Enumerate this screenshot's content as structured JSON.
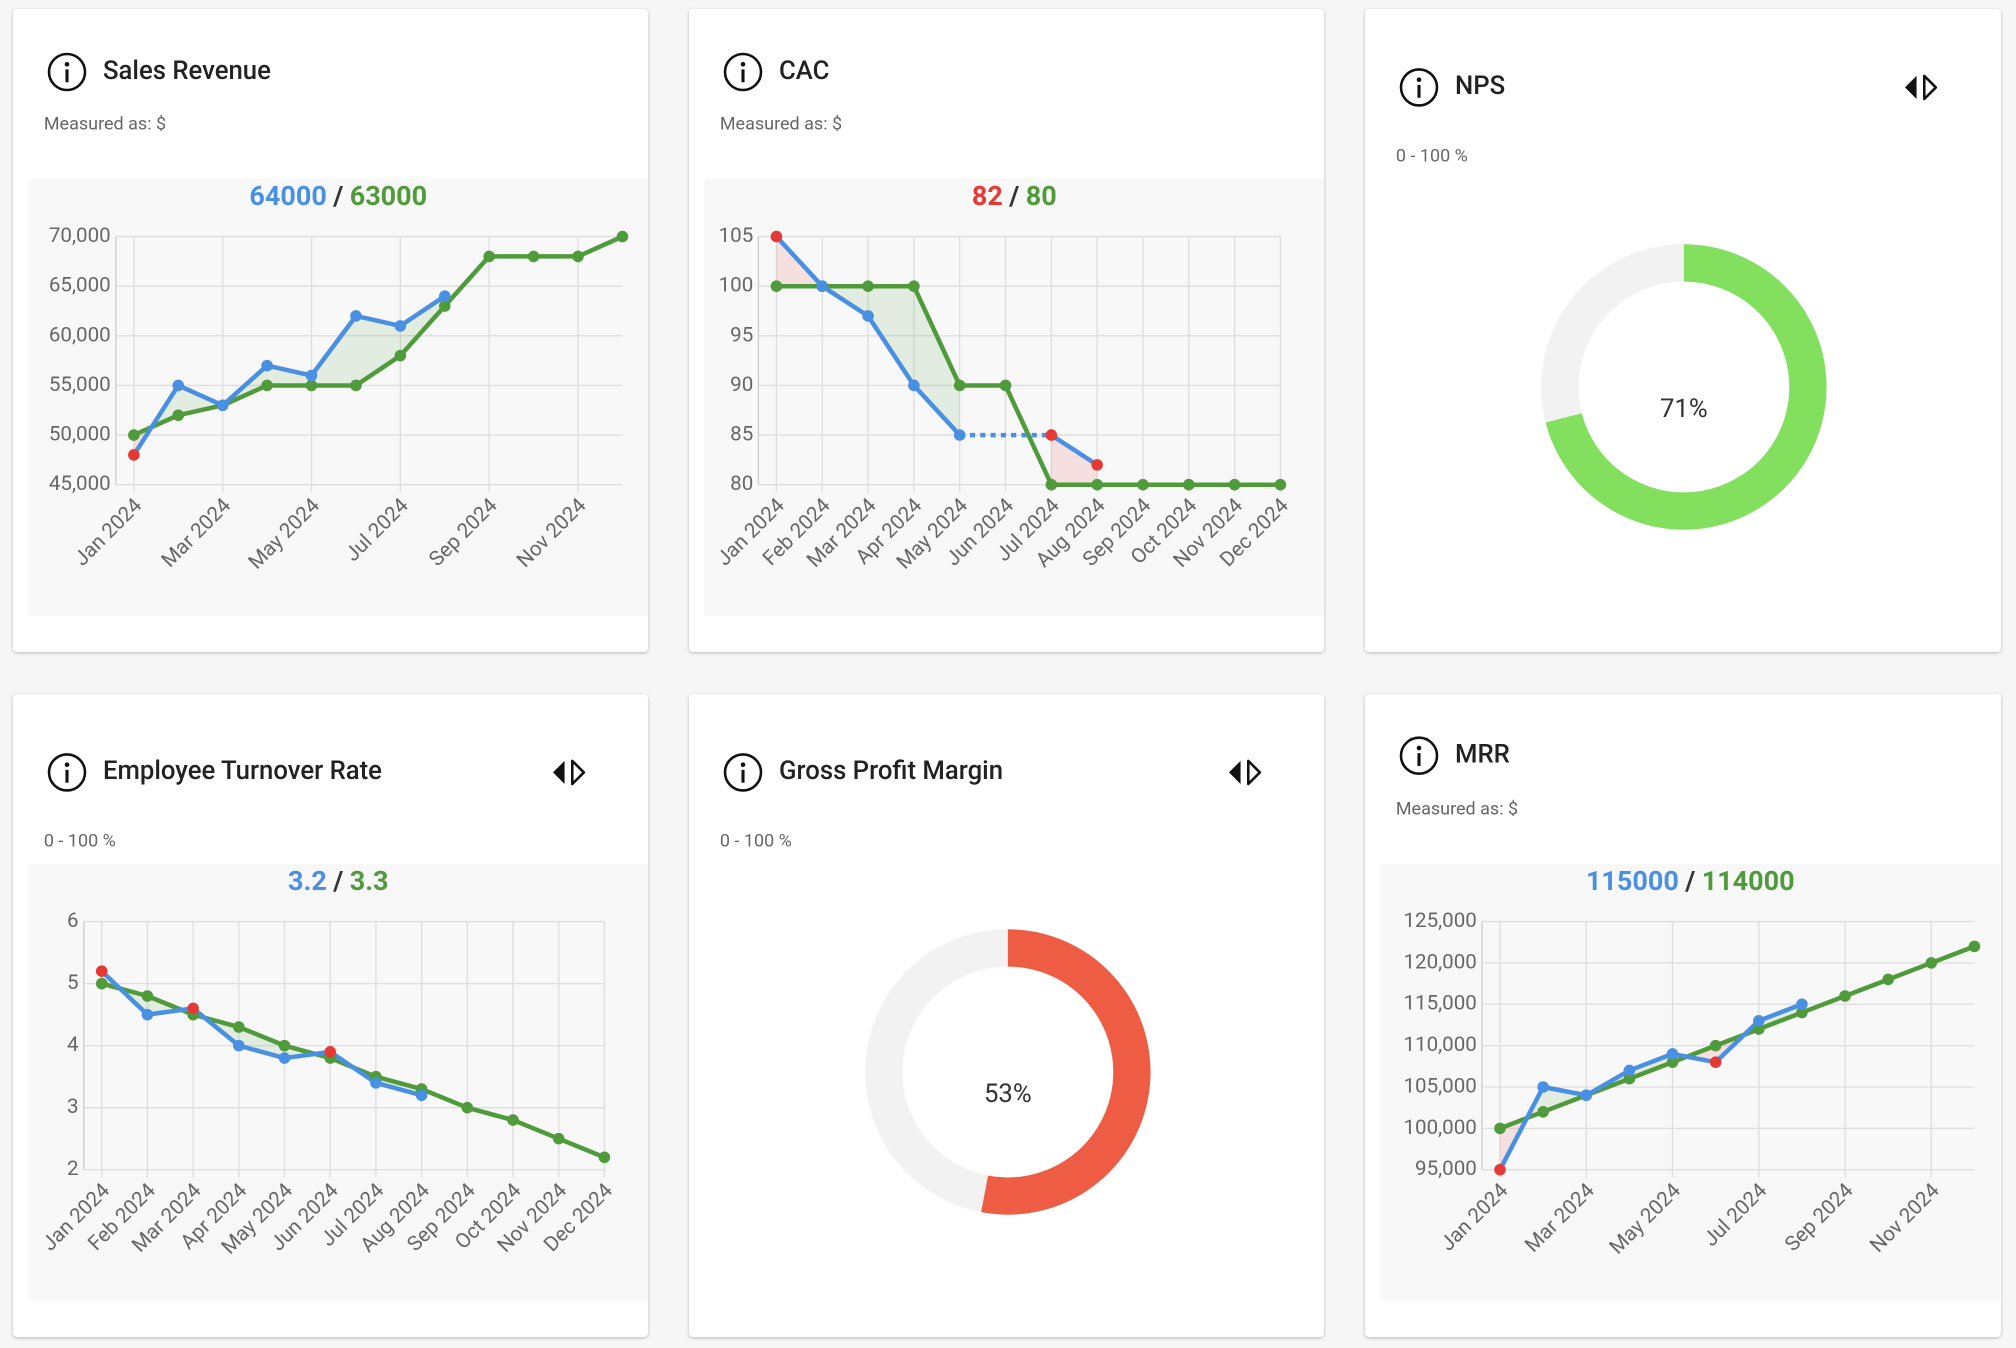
{
  "chart_data": [
    {
      "type": "line",
      "title": "Sales Revenue",
      "subtitle": "Measured as: $",
      "separator": "/",
      "better": "higher",
      "alert_color": "#e53935",
      "categories": [
        "Jan 2024",
        null,
        "Mar 2024",
        null,
        "May 2024",
        null,
        "Jul 2024",
        null,
        "Sep 2024",
        null,
        "Nov 2024",
        null
      ],
      "series": [
        {
          "color": "#4a90e2",
          "values": [
            48000,
            55000,
            53000,
            57000,
            56000,
            62000,
            61000,
            64000,
            null,
            null,
            null,
            null
          ]
        },
        {
          "color": "#4f9a3a",
          "values": [
            50000,
            52000,
            53000,
            55000,
            55000,
            55000,
            58000,
            63000,
            68000,
            68000,
            68000,
            70000
          ]
        }
      ],
      "ylim": [
        45000,
        70000
      ],
      "yticks": [
        {
          "value": 45000,
          "label": "45,000"
        },
        {
          "value": 50000,
          "label": "50,000"
        },
        {
          "value": 55000,
          "label": "55,000"
        },
        {
          "value": 60000,
          "label": "60,000"
        },
        {
          "value": 65000,
          "label": "65,000"
        },
        {
          "value": 70000,
          "label": "70,000"
        }
      ],
      "grid": true
    },
    {
      "type": "line",
      "title": "CAC",
      "subtitle": "Measured as: $",
      "separator": "/",
      "better": "lower",
      "alert_color": "#e53935",
      "gap_style": "dashed",
      "categories": [
        "Jan 2024",
        "Feb 2024",
        "Mar 2024",
        "Apr 2024",
        "May 2024",
        "Jun 2024",
        "Jul 2024",
        "Aug 2024",
        "Sep 2024",
        "Oct 2024",
        "Nov 2024",
        "Dec 2024"
      ],
      "series": [
        {
          "color": "#4a90e2",
          "values": [
            105,
            100,
            97,
            90,
            85,
            null,
            85,
            82,
            null,
            null,
            null,
            null
          ]
        },
        {
          "color": "#4f9a3a",
          "values": [
            100,
            100,
            100,
            100,
            90,
            90,
            80,
            80,
            80,
            80,
            80,
            80
          ]
        }
      ],
      "ylim": [
        80,
        105
      ],
      "yticks": [
        80,
        85,
        90,
        95,
        100,
        105
      ],
      "grid": true
    },
    {
      "type": "donut",
      "title": "NPS",
      "subtitle": "0 - 100 %",
      "value": 71,
      "value_label": "71%",
      "range": [
        0,
        100
      ],
      "color": "#82e05e",
      "track_color": "#f2f2f2"
    },
    {
      "type": "line",
      "title": "Employee Turnover Rate",
      "subtitle": "0 - 100 %",
      "separator": "/",
      "better": "lower",
      "alert_color": "#e53935",
      "categories": [
        "Jan 2024",
        "Feb 2024",
        "Mar 2024",
        "Apr 2024",
        "May 2024",
        "Jun 2024",
        "Jul 2024",
        "Aug 2024",
        "Sep 2024",
        "Oct 2024",
        "Nov 2024",
        "Dec 2024"
      ],
      "series": [
        {
          "color": "#4a90e2",
          "values": [
            5.2,
            4.5,
            4.6,
            4.0,
            3.8,
            3.9,
            3.4,
            3.2,
            null,
            null,
            null,
            null
          ]
        },
        {
          "color": "#4f9a3a",
          "values": [
            5.0,
            4.8,
            4.5,
            4.3,
            4.0,
            3.8,
            3.5,
            3.3,
            3.0,
            2.8,
            2.5,
            2.2
          ]
        }
      ],
      "ylim": [
        2,
        6
      ],
      "yticks": [
        2,
        3,
        4,
        5,
        6
      ],
      "grid": true
    },
    {
      "type": "donut",
      "title": "Gross Profit Margin",
      "subtitle": "0 - 100 %",
      "value": 53,
      "value_label": "53%",
      "range": [
        0,
        100
      ],
      "color": "#ee5d43",
      "track_color": "#f2f2f2"
    },
    {
      "type": "line",
      "title": "MRR",
      "subtitle": "Measured as: $",
      "separator": "/",
      "better": "higher",
      "alert_color": "#e53935",
      "categories": [
        "Jan 2024",
        null,
        "Mar 2024",
        null,
        "May 2024",
        null,
        "Jul 2024",
        null,
        "Sep 2024",
        null,
        "Nov 2024",
        null
      ],
      "series": [
        {
          "color": "#4a90e2",
          "values": [
            95000,
            105000,
            104000,
            107000,
            109000,
            108000,
            113000,
            115000,
            null,
            null,
            null,
            null
          ]
        },
        {
          "color": "#4f9a3a",
          "values": [
            100000,
            102000,
            104000,
            106000,
            108000,
            110000,
            112000,
            114000,
            116000,
            118000,
            120000,
            122000
          ]
        }
      ],
      "ylim": [
        95000,
        125000
      ],
      "yticks": [
        {
          "value": 95000,
          "label": "95,000"
        },
        {
          "value": 100000,
          "label": "100,000"
        },
        {
          "value": 105000,
          "label": "105,000"
        },
        {
          "value": 110000,
          "label": "110,000"
        },
        {
          "value": 115000,
          "label": "115,000"
        },
        {
          "value": 120000,
          "label": "120,000"
        },
        {
          "value": 125000,
          "label": "125,000"
        }
      ],
      "grid": true
    }
  ]
}
